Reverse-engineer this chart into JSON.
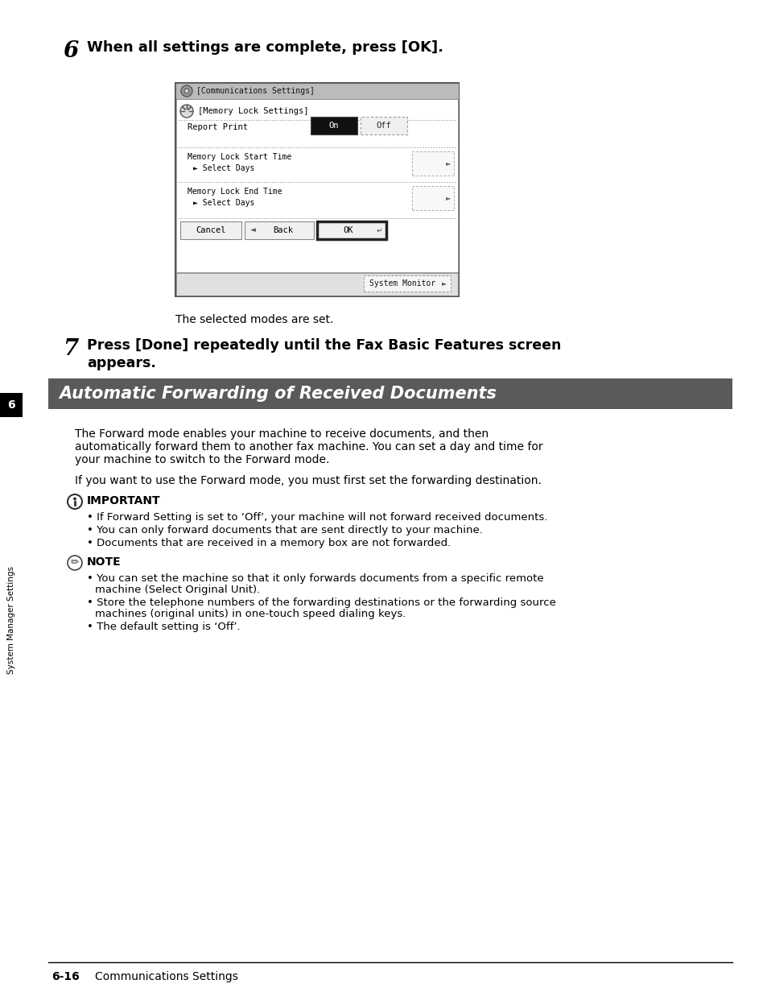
{
  "page_bg": "#ffffff",
  "sidebar_tab_text": "6",
  "sidebar_label": "System Manager Settings",
  "section_number_6": "6",
  "step6_heading": "When all settings are complete, press [OK].",
  "step7_heading_line1": "Press [Done] repeatedly until the Fax Basic Features screen",
  "step7_heading_line2": "appears.",
  "section_title": "Automatic Forwarding of Received Documents",
  "section_title_bg": "#5a5a5a",
  "section_title_color": "#ffffff",
  "caption": "The selected modes are set.",
  "body_para1_line1": "The Forward mode enables your machine to receive documents, and then",
  "body_para1_line2": "automatically forward them to another fax machine. You can set a day and time for",
  "body_para1_line3": "your machine to switch to the Forward mode.",
  "body_para2": "If you want to use the Forward mode, you must first set the forwarding destination.",
  "important_title": "IMPORTANT",
  "important_bullets": [
    "If Forward Setting is set to ‘Off’, your machine will not forward received documents.",
    "You can only forward documents that are sent directly to your machine.",
    "Documents that are received in a memory box are not forwarded."
  ],
  "note_title": "NOTE",
  "note_bullets": [
    [
      "You can set the machine so that it only forwards documents from a specific remote",
      "machine (Select Original Unit)."
    ],
    [
      "Store the telephone numbers of the forwarding destinations or the forwarding source",
      "machines (original units) in one-touch speed dialing keys."
    ],
    [
      "The default setting is ‘Off’."
    ]
  ],
  "footer_left": "6-16",
  "footer_right": "Communications Settings",
  "screen_title_bar": "[Communications Settings]",
  "screen_inner_title": "[Memory Lock Settings]",
  "screen_report_print": "Report Print",
  "screen_on": "On",
  "screen_off": "Off",
  "screen_start_time_line1": "Memory Lock Start Time",
  "screen_start_time_line2": "► Select Days",
  "screen_end_time_line1": "Memory Lock End Time",
  "screen_end_time_line2": "► Select Days",
  "screen_cancel": "Cancel",
  "screen_back": "Back",
  "screen_ok": "OK",
  "screen_system_monitor": "System Monitor"
}
